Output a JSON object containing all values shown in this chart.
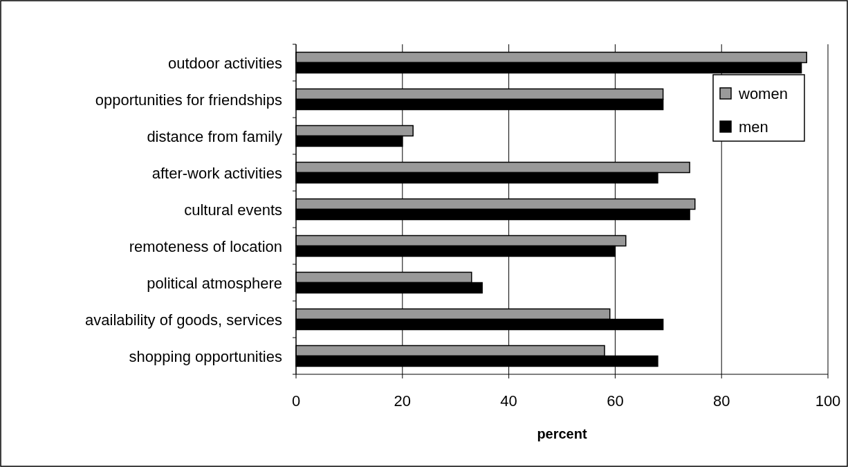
{
  "chart_data": {
    "type": "bar",
    "orientation": "horizontal",
    "xlabel": "percent",
    "categories": [
      "outdoor activities",
      "opportunities for friendships",
      "distance from family",
      "after-work activities",
      "cultural events",
      "remoteness of location",
      "political atmosphere",
      "availability of goods, services",
      "shopping opportunities"
    ],
    "series": [
      {
        "name": "women",
        "color": "#999999",
        "values": [
          96,
          69,
          22,
          74,
          75,
          62,
          33,
          59,
          58
        ]
      },
      {
        "name": "men",
        "color": "#000000",
        "values": [
          95,
          69,
          20,
          68,
          74,
          60,
          35,
          69,
          68
        ]
      }
    ],
    "xlim": [
      0,
      100
    ],
    "xticks": [
      0,
      20,
      40,
      60,
      80,
      100
    ],
    "grid": "x",
    "legend": "top right"
  }
}
